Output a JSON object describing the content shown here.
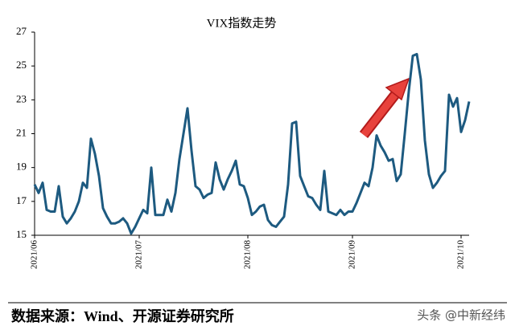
{
  "chart_data": {
    "type": "line",
    "title": "VIX指数走势",
    "categories": [
      "2021/06",
      null,
      null,
      null,
      null,
      null,
      null,
      null,
      null,
      null,
      null,
      null,
      null,
      null,
      null,
      null,
      null,
      null,
      null,
      null,
      null,
      null,
      null,
      null,
      null,
      null,
      "2021/07",
      null,
      null,
      null,
      null,
      null,
      null,
      null,
      null,
      null,
      null,
      null,
      null,
      null,
      null,
      null,
      null,
      null,
      null,
      null,
      null,
      null,
      null,
      null,
      null,
      null,
      null,
      "2021/08",
      null,
      null,
      null,
      null,
      null,
      null,
      null,
      null,
      null,
      null,
      null,
      null,
      null,
      null,
      null,
      null,
      null,
      null,
      null,
      null,
      null,
      null,
      null,
      null,
      null,
      "2021/09",
      null,
      null,
      null,
      null,
      null,
      null,
      null,
      null,
      null,
      null,
      null,
      null,
      null,
      null,
      null,
      null,
      null,
      null,
      null,
      null,
      null,
      null,
      null,
      null,
      null,
      null,
      "2021/10",
      null,
      null
    ],
    "series": [
      {
        "name": "VIX",
        "color": "#1d5a80",
        "values": [
          18.0,
          17.5,
          18.1,
          16.5,
          16.4,
          16.4,
          17.9,
          16.1,
          15.7,
          16.0,
          16.4,
          17.0,
          18.1,
          17.8,
          20.7,
          19.8,
          18.5,
          16.6,
          16.1,
          15.7,
          15.7,
          15.8,
          16.0,
          15.7,
          15.1,
          15.5,
          16.0,
          16.5,
          16.3,
          19.0,
          16.2,
          16.2,
          16.2,
          17.1,
          16.4,
          17.5,
          19.5,
          21.0,
          22.5,
          20.0,
          17.9,
          17.7,
          17.2,
          17.4,
          17.5,
          19.3,
          18.3,
          17.7,
          18.3,
          18.8,
          19.4,
          18.0,
          17.9,
          17.2,
          16.2,
          16.4,
          16.7,
          16.8,
          15.9,
          15.6,
          15.5,
          15.8,
          16.1,
          18.0,
          21.6,
          21.7,
          18.5,
          17.9,
          17.3,
          17.2,
          16.8,
          16.5,
          18.8,
          16.4,
          16.3,
          16.2,
          16.5,
          16.2,
          16.4,
          16.4,
          16.9,
          17.5,
          18.1,
          17.9,
          19.0,
          20.9,
          20.3,
          19.9,
          19.4,
          19.5,
          18.2,
          18.6,
          21.0,
          23.5,
          25.6,
          25.7,
          24.2,
          20.6,
          18.6,
          17.8,
          18.1,
          18.5,
          18.8,
          23.3,
          22.6,
          23.1,
          21.1,
          21.8,
          22.9
        ]
      }
    ],
    "ylim": [
      15,
      27
    ],
    "yticks": [
      15,
      17,
      19,
      21,
      23,
      25,
      27
    ],
    "source": "数据来源：Wind、开源证券研究所",
    "watermark": "头条 @中新经纬"
  }
}
